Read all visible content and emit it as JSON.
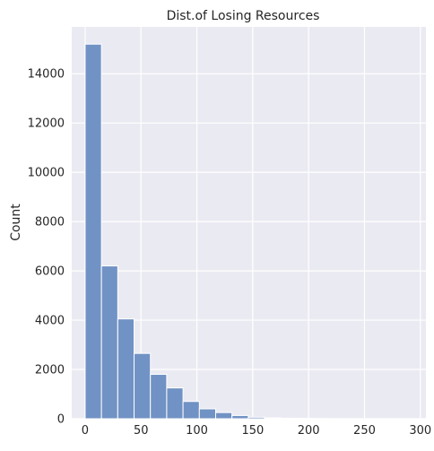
{
  "chart_data": {
    "type": "bar",
    "title": "Dist.of Losing Resources",
    "xlabel": "",
    "ylabel": "Count",
    "xlim": [
      -12,
      305
    ],
    "ylim": [
      0,
      15900
    ],
    "xticks": [
      0,
      50,
      100,
      150,
      200,
      250,
      300
    ],
    "yticks": [
      0,
      2000,
      4000,
      6000,
      8000,
      10000,
      12000,
      14000
    ],
    "grid": true,
    "bin_width": 14.6,
    "bins": [
      {
        "x0": 0.0,
        "x1": 14.6,
        "count": 15200
      },
      {
        "x0": 14.6,
        "x1": 29.2,
        "count": 6200
      },
      {
        "x0": 29.2,
        "x1": 43.8,
        "count": 4050
      },
      {
        "x0": 43.8,
        "x1": 58.4,
        "count": 2650
      },
      {
        "x0": 58.4,
        "x1": 73.0,
        "count": 1800
      },
      {
        "x0": 73.0,
        "x1": 87.6,
        "count": 1250
      },
      {
        "x0": 87.6,
        "x1": 102.2,
        "count": 700
      },
      {
        "x0": 102.2,
        "x1": 116.8,
        "count": 400
      },
      {
        "x0": 116.8,
        "x1": 131.4,
        "count": 250
      },
      {
        "x0": 131.4,
        "x1": 146.0,
        "count": 130
      },
      {
        "x0": 146.0,
        "x1": 160.6,
        "count": 60
      },
      {
        "x0": 160.6,
        "x1": 175.2,
        "count": 35
      },
      {
        "x0": 175.2,
        "x1": 189.8,
        "count": 20
      },
      {
        "x0": 189.8,
        "x1": 204.4,
        "count": 10
      },
      {
        "x0": 204.4,
        "x1": 219.0,
        "count": 6
      },
      {
        "x0": 219.0,
        "x1": 233.6,
        "count": 4
      },
      {
        "x0": 233.6,
        "x1": 248.2,
        "count": 3
      },
      {
        "x0": 248.2,
        "x1": 262.8,
        "count": 2
      },
      {
        "x0": 262.8,
        "x1": 277.4,
        "count": 1
      },
      {
        "x0": 277.4,
        "x1": 292.0,
        "count": 1
      }
    ],
    "colors": {
      "background": "#eaeaf2",
      "grid": "#ffffff",
      "bar": "#7192c4",
      "bar_edge": "#ffffff"
    }
  }
}
